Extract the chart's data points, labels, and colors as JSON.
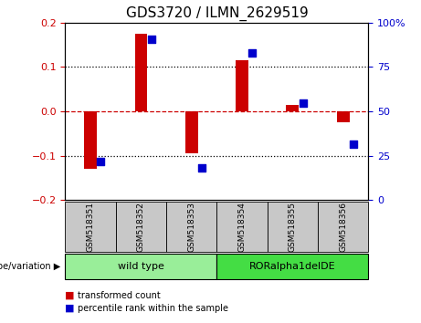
{
  "title": "GDS3720 / ILMN_2629519",
  "samples": [
    "GSM518351",
    "GSM518352",
    "GSM518353",
    "GSM518354",
    "GSM518355",
    "GSM518356"
  ],
  "red_bars": [
    -0.13,
    0.175,
    -0.095,
    0.115,
    0.015,
    -0.025
  ],
  "blue_squares": [
    -0.113,
    0.163,
    -0.128,
    0.132,
    0.018,
    -0.073
  ],
  "ylim_left": [
    -0.2,
    0.2
  ],
  "ylim_right": [
    0,
    100
  ],
  "yticks_left": [
    -0.2,
    -0.1,
    0,
    0.1,
    0.2
  ],
  "yticks_right": [
    0,
    25,
    50,
    75,
    100
  ],
  "group_label": "genotype/variation",
  "legend_red": "transformed count",
  "legend_blue": "percentile rank within the sample",
  "red_color": "#CC0000",
  "blue_color": "#0000CC",
  "bar_width": 0.25,
  "plot_bg": "#FFFFFF",
  "title_fontsize": 11,
  "tick_fontsize": 8,
  "sample_box_color": "#C8C8C8",
  "group1_color": "#99EE99",
  "group2_color": "#44DD44",
  "group1_label": "wild type",
  "group2_label": "RORalpha1delDE"
}
